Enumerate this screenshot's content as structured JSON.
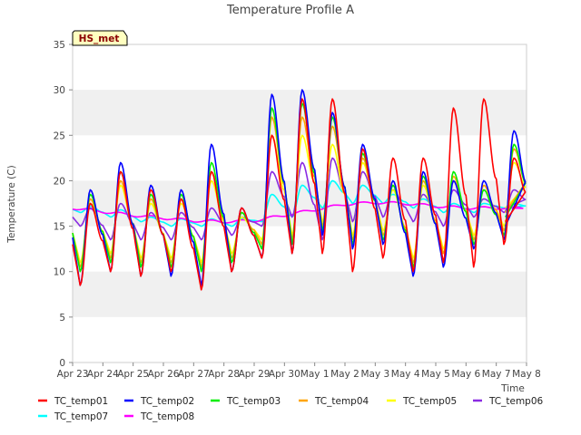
{
  "chart_data": {
    "type": "line",
    "title": "Temperature Profile A",
    "xlabel": "Time",
    "ylabel": "Temperature (C)",
    "badge": "HS_met",
    "ylim": [
      0,
      35
    ],
    "yticks": [
      0,
      5,
      10,
      15,
      20,
      25,
      30,
      35
    ],
    "xlim": [
      0,
      15
    ],
    "xticks": [
      {
        "x": 0,
        "label": "Apr 23"
      },
      {
        "x": 1,
        "label": "Apr 24"
      },
      {
        "x": 2,
        "label": "Apr 25"
      },
      {
        "x": 3,
        "label": "Apr 26"
      },
      {
        "x": 4,
        "label": "Apr 27"
      },
      {
        "x": 5,
        "label": "Apr 28"
      },
      {
        "x": 6,
        "label": "Apr 29"
      },
      {
        "x": 7,
        "label": "Apr 30"
      },
      {
        "x": 8,
        "label": "May 1"
      },
      {
        "x": 9,
        "label": "May 2"
      },
      {
        "x": 10,
        "label": "May 3"
      },
      {
        "x": 11,
        "label": "May 4"
      },
      {
        "x": 12,
        "label": "May 5"
      },
      {
        "x": 13,
        "label": "May 6"
      },
      {
        "x": 14,
        "label": "May 7"
      },
      {
        "x": 15,
        "label": "May 8"
      }
    ],
    "grid": "horizontal bands",
    "legend_position": "bottom",
    "days": [
      "Apr 23",
      "Apr 24",
      "Apr 25",
      "Apr 26",
      "Apr 27",
      "Apr 28",
      "Apr 29",
      "Apr 30",
      "May 1",
      "May 2",
      "May 3",
      "May 4",
      "May 5",
      "May 6",
      "May 7"
    ],
    "series": [
      {
        "name": "TC_temp01",
        "color": "#ff0000",
        "mins": [
          8.5,
          10.0,
          9.5,
          10.0,
          8.0,
          10.0,
          11.5,
          12.0,
          12.0,
          10.0,
          11.5,
          10.0,
          11.0,
          10.5,
          13.0
        ],
        "maxs": [
          17.5,
          21.0,
          19.0,
          18.0,
          21.0,
          17.0,
          25.0,
          29.0,
          29.0,
          23.5,
          22.5,
          22.5,
          28.0,
          29.0,
          22.5
        ],
        "end": 15.5
      },
      {
        "name": "TC_temp02",
        "color": "#0000ff",
        "mins": [
          8.5,
          10.0,
          9.5,
          9.5,
          8.5,
          10.0,
          11.5,
          12.0,
          14.0,
          12.5,
          13.0,
          9.5,
          10.5,
          12.5,
          13.5
        ],
        "maxs": [
          19.0,
          22.0,
          19.5,
          19.0,
          24.0,
          17.0,
          29.5,
          30.0,
          27.5,
          24.0,
          20.0,
          21.0,
          20.0,
          20.0,
          25.5
        ],
        "end": 15.0
      },
      {
        "name": "TC_temp03",
        "color": "#00ee00",
        "mins": [
          10.0,
          11.0,
          10.5,
          10.5,
          10.0,
          11.0,
          12.5,
          13.0,
          14.5,
          13.0,
          13.5,
          10.5,
          11.0,
          13.0,
          14.0
        ],
        "maxs": [
          18.5,
          21.0,
          18.5,
          18.5,
          22.0,
          16.5,
          28.0,
          28.5,
          27.0,
          23.0,
          19.5,
          20.5,
          21.0,
          19.0,
          24.0
        ],
        "end": 16.0
      },
      {
        "name": "TC_temp04",
        "color": "#ffa500",
        "mins": [
          10.5,
          11.5,
          11.0,
          11.0,
          10.5,
          11.5,
          13.0,
          13.5,
          15.0,
          13.5,
          14.0,
          11.0,
          12.0,
          13.5,
          14.5
        ],
        "maxs": [
          18.0,
          20.0,
          18.0,
          18.0,
          21.0,
          16.5,
          27.0,
          27.0,
          26.0,
          22.5,
          19.5,
          20.0,
          20.5,
          19.5,
          23.5
        ],
        "end": 16.5
      },
      {
        "name": "TC_temp05",
        "color": "#ffff00",
        "mins": [
          11.0,
          12.0,
          11.5,
          11.5,
          11.0,
          12.0,
          13.5,
          14.0,
          15.5,
          14.0,
          14.5,
          11.5,
          12.5,
          14.0,
          15.0
        ],
        "maxs": [
          17.5,
          19.5,
          17.5,
          17.5,
          20.0,
          16.0,
          25.0,
          25.0,
          24.0,
          22.0,
          19.0,
          19.5,
          20.0,
          19.0,
          22.0
        ],
        "end": 17.0
      },
      {
        "name": "TC_temp06",
        "color": "#8a2be2",
        "mins": [
          15.0,
          13.5,
          13.5,
          13.5,
          13.5,
          14.0,
          15.0,
          16.0,
          13.5,
          15.5,
          16.0,
          15.5,
          15.0,
          16.0,
          16.5
        ],
        "maxs": [
          17.0,
          17.5,
          16.5,
          16.5,
          17.0,
          16.0,
          21.0,
          22.0,
          22.5,
          21.0,
          19.0,
          18.5,
          19.0,
          18.0,
          19.0
        ],
        "end": 17.0
      },
      {
        "name": "TC_temp07",
        "color": "#00ffff",
        "mins": [
          16.5,
          16.0,
          15.5,
          15.0,
          15.0,
          15.0,
          15.5,
          16.0,
          17.0,
          17.5,
          17.5,
          17.0,
          16.5,
          16.5,
          17.0
        ],
        "maxs": [
          17.2,
          16.8,
          16.0,
          15.8,
          15.8,
          15.8,
          18.5,
          19.5,
          20.0,
          19.5,
          18.5,
          18.0,
          17.5,
          17.5,
          17.5
        ],
        "end": 17.0
      },
      {
        "name": "TC_temp08",
        "color": "#ff00ff",
        "level": [
          17.0,
          16.6,
          16.2,
          15.9,
          15.6,
          15.5,
          15.6,
          16.2,
          16.8,
          17.4,
          17.6,
          17.5,
          17.2,
          17.0,
          17.0
        ],
        "end": 17.0
      }
    ]
  }
}
